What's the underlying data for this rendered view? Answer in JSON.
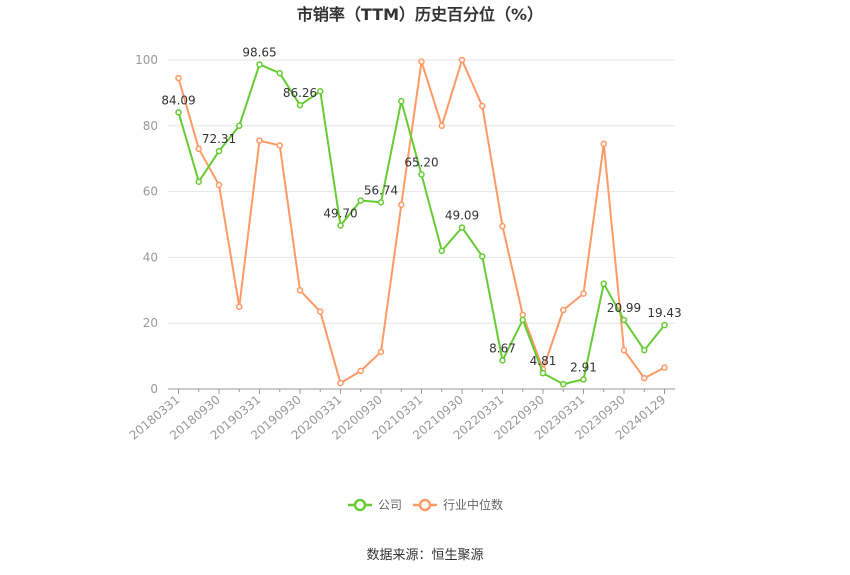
{
  "chart_data": {
    "type": "line",
    "title": "市销率（TTM）历史百分位（%）",
    "xlabel": "",
    "ylabel": "",
    "ylim": [
      0,
      100
    ],
    "yticks": [
      0,
      20,
      40,
      60,
      80,
      100
    ],
    "grid": true,
    "legend_position": "bottom",
    "x": [
      "20180331",
      "20180630",
      "20180930",
      "20181231",
      "20190331",
      "20190630",
      "20190930",
      "20191231",
      "20200331",
      "20200630",
      "20200930",
      "20201231",
      "20210331",
      "20210630",
      "20210930",
      "20211231",
      "20220331",
      "20220630",
      "20220930",
      "20221231",
      "20230331",
      "20230630",
      "20230930",
      "20231231",
      "20240129"
    ],
    "x_tick_labels": [
      "20180331",
      "20180930",
      "20190331",
      "20190930",
      "20200331",
      "20200930",
      "20210331",
      "20210930",
      "20220331",
      "20220930",
      "20230331",
      "20230930",
      "20240129"
    ],
    "series": [
      {
        "name": "公司",
        "color": "#66cc33",
        "values": [
          84.09,
          63,
          72.31,
          80,
          98.65,
          96,
          86.26,
          90.5,
          49.7,
          57.3,
          56.74,
          87.5,
          65.2,
          42,
          49.09,
          40.3,
          8.67,
          21,
          4.81,
          1.5,
          2.91,
          32,
          20.99,
          11.8,
          19.43
        ],
        "data_labels": [
          {
            "index": 0,
            "text": "84.09"
          },
          {
            "index": 2,
            "text": "72.31"
          },
          {
            "index": 4,
            "text": "98.65"
          },
          {
            "index": 6,
            "text": "86.26"
          },
          {
            "index": 8,
            "text": "49.70"
          },
          {
            "index": 10,
            "text": "56.74"
          },
          {
            "index": 12,
            "text": "65.20"
          },
          {
            "index": 14,
            "text": "49.09"
          },
          {
            "index": 16,
            "text": "8.67"
          },
          {
            "index": 18,
            "text": "4.81"
          },
          {
            "index": 20,
            "text": "2.91"
          },
          {
            "index": 22,
            "text": "20.99"
          },
          {
            "index": 24,
            "text": "19.43"
          }
        ]
      },
      {
        "name": "行业中位数",
        "color": "#ff9966",
        "values": [
          94.5,
          73,
          62,
          25,
          75.5,
          74,
          30,
          23.5,
          1.8,
          5.5,
          11.3,
          56,
          99.5,
          80,
          100,
          86,
          49.5,
          22.5,
          6,
          24,
          29,
          74.5,
          11.8,
          3.3,
          6.5
        ]
      }
    ]
  },
  "source_text": "数据来源：恒生聚源"
}
